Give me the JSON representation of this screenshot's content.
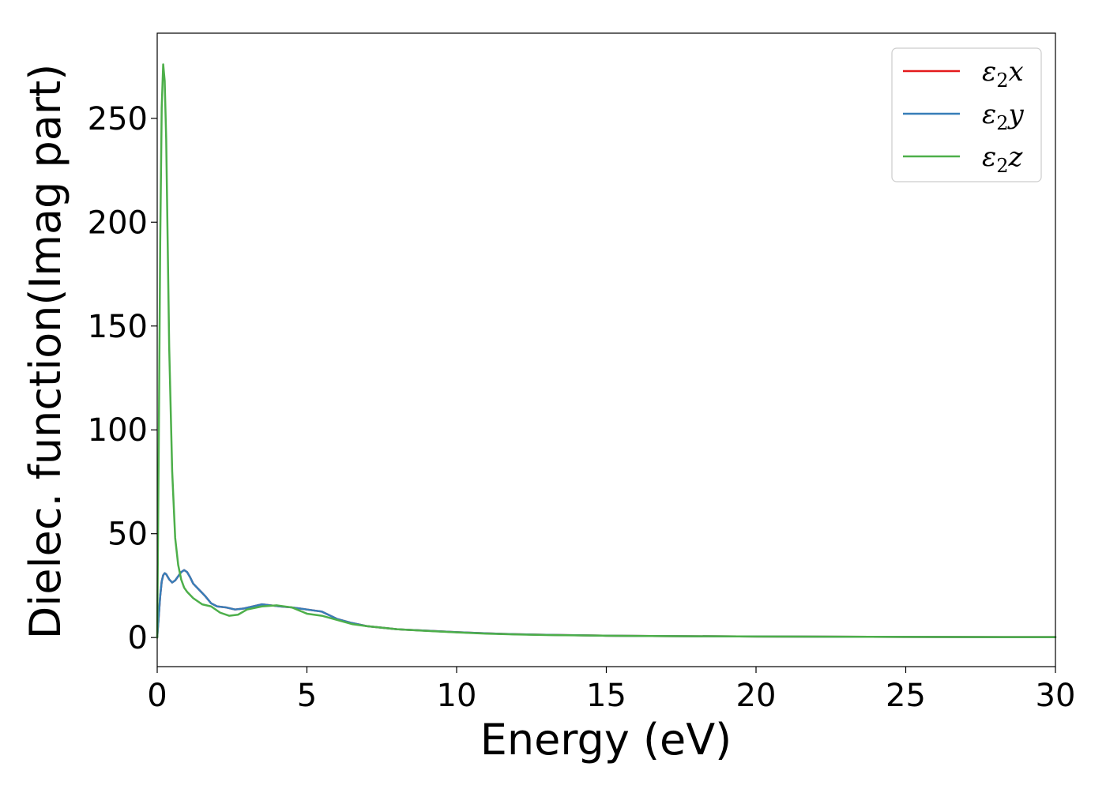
{
  "chart_data": {
    "type": "line",
    "title": "",
    "xlabel": "Energy (eV)",
    "ylabel": "Dielec. function(Imag part)",
    "xlim": [
      0,
      30
    ],
    "ylim": [
      -14,
      291
    ],
    "xticks": [
      "0",
      "5",
      "10",
      "15",
      "20",
      "25",
      "30"
    ],
    "yticks": [
      "0",
      "50",
      "100",
      "150",
      "200",
      "250"
    ],
    "xtick_values": [
      0,
      5,
      10,
      15,
      20,
      25,
      30
    ],
    "ytick_values": [
      0,
      50,
      100,
      150,
      200,
      250
    ],
    "grid": false,
    "legend": {
      "placement": "top-right",
      "entries": [
        {
          "base": "ε",
          "sub": "2",
          "tail": "x",
          "color": "#e41a1c"
        },
        {
          "base": "ε",
          "sub": "2",
          "tail": "y",
          "color": "#377eb8"
        },
        {
          "base": "ε",
          "sub": "2",
          "tail": "z",
          "color": "#4daf4a"
        }
      ]
    },
    "series": [
      {
        "key": "x",
        "color": "#e41a1c",
        "x": [
          0,
          0.05,
          0.1,
          0.15,
          0.2,
          0.25,
          0.3,
          0.4,
          0.5,
          0.6,
          0.7,
          0.8,
          0.9,
          1.0,
          1.1,
          1.2,
          1.4,
          1.6,
          1.8,
          2.0,
          2.3,
          2.6,
          2.9,
          3.2,
          3.5,
          3.8,
          4.1,
          4.5,
          5.0,
          5.5,
          6.0,
          6.5,
          7.0,
          8.0,
          9.0,
          10.0,
          11.0,
          12.0,
          13.0,
          15.0,
          17.0,
          20.0,
          25.0,
          30.0
        ],
        "y": [
          0,
          10,
          20,
          27,
          30,
          31,
          30.5,
          28,
          26.5,
          27.5,
          29.5,
          31.5,
          32.5,
          31.5,
          29,
          26,
          23,
          20,
          16.5,
          15,
          14.5,
          13.5,
          14,
          15,
          16,
          15.5,
          15,
          14.5,
          13.5,
          12.5,
          9,
          7,
          5.5,
          4,
          3.3,
          2.6,
          2,
          1.6,
          1.3,
          0.9,
          0.7,
          0.5,
          0.3,
          0.2
        ]
      },
      {
        "key": "y",
        "color": "#377eb8",
        "x": [
          0,
          0.05,
          0.1,
          0.15,
          0.2,
          0.25,
          0.3,
          0.4,
          0.5,
          0.6,
          0.7,
          0.8,
          0.9,
          1.0,
          1.1,
          1.2,
          1.4,
          1.6,
          1.8,
          2.0,
          2.3,
          2.6,
          2.9,
          3.2,
          3.5,
          3.8,
          4.1,
          4.5,
          5.0,
          5.5,
          6.0,
          6.5,
          7.0,
          8.0,
          9.0,
          10.0,
          11.0,
          12.0,
          13.0,
          15.0,
          17.0,
          20.0,
          25.0,
          30.0
        ],
        "y": [
          0,
          10,
          20,
          27,
          30,
          31,
          30.5,
          28,
          26.5,
          27.5,
          29.5,
          31.5,
          32.5,
          31.5,
          29,
          26,
          23,
          20,
          16.5,
          15,
          14.5,
          13.5,
          14,
          15,
          16,
          15.5,
          15,
          14.5,
          13.5,
          12.5,
          9,
          7,
          5.5,
          4,
          3.3,
          2.6,
          2,
          1.6,
          1.3,
          0.9,
          0.7,
          0.5,
          0.3,
          0.2
        ]
      },
      {
        "key": "z",
        "color": "#4daf4a",
        "x": [
          0,
          0.05,
          0.1,
          0.15,
          0.2,
          0.25,
          0.3,
          0.35,
          0.4,
          0.5,
          0.6,
          0.7,
          0.8,
          0.9,
          1.0,
          1.2,
          1.5,
          1.8,
          2.1,
          2.4,
          2.7,
          3.0,
          3.5,
          4.0,
          4.5,
          5.0,
          5.5,
          6.0,
          6.5,
          7.0,
          8.0,
          9.0,
          10.0,
          11.0,
          12.0,
          13.0,
          15.0,
          17.0,
          20.0,
          25.0,
          30.0
        ],
        "y": [
          0,
          90,
          190,
          255,
          276,
          268,
          240,
          190,
          140,
          80,
          48,
          35,
          28,
          24,
          22,
          19,
          16,
          15,
          12,
          10.5,
          11,
          13.5,
          15,
          15.5,
          14.5,
          11.5,
          10.5,
          8.5,
          6.5,
          5.5,
          4,
          3.2,
          2.5,
          1.9,
          1.5,
          1.2,
          0.9,
          0.7,
          0.5,
          0.3,
          0.2
        ]
      }
    ]
  }
}
